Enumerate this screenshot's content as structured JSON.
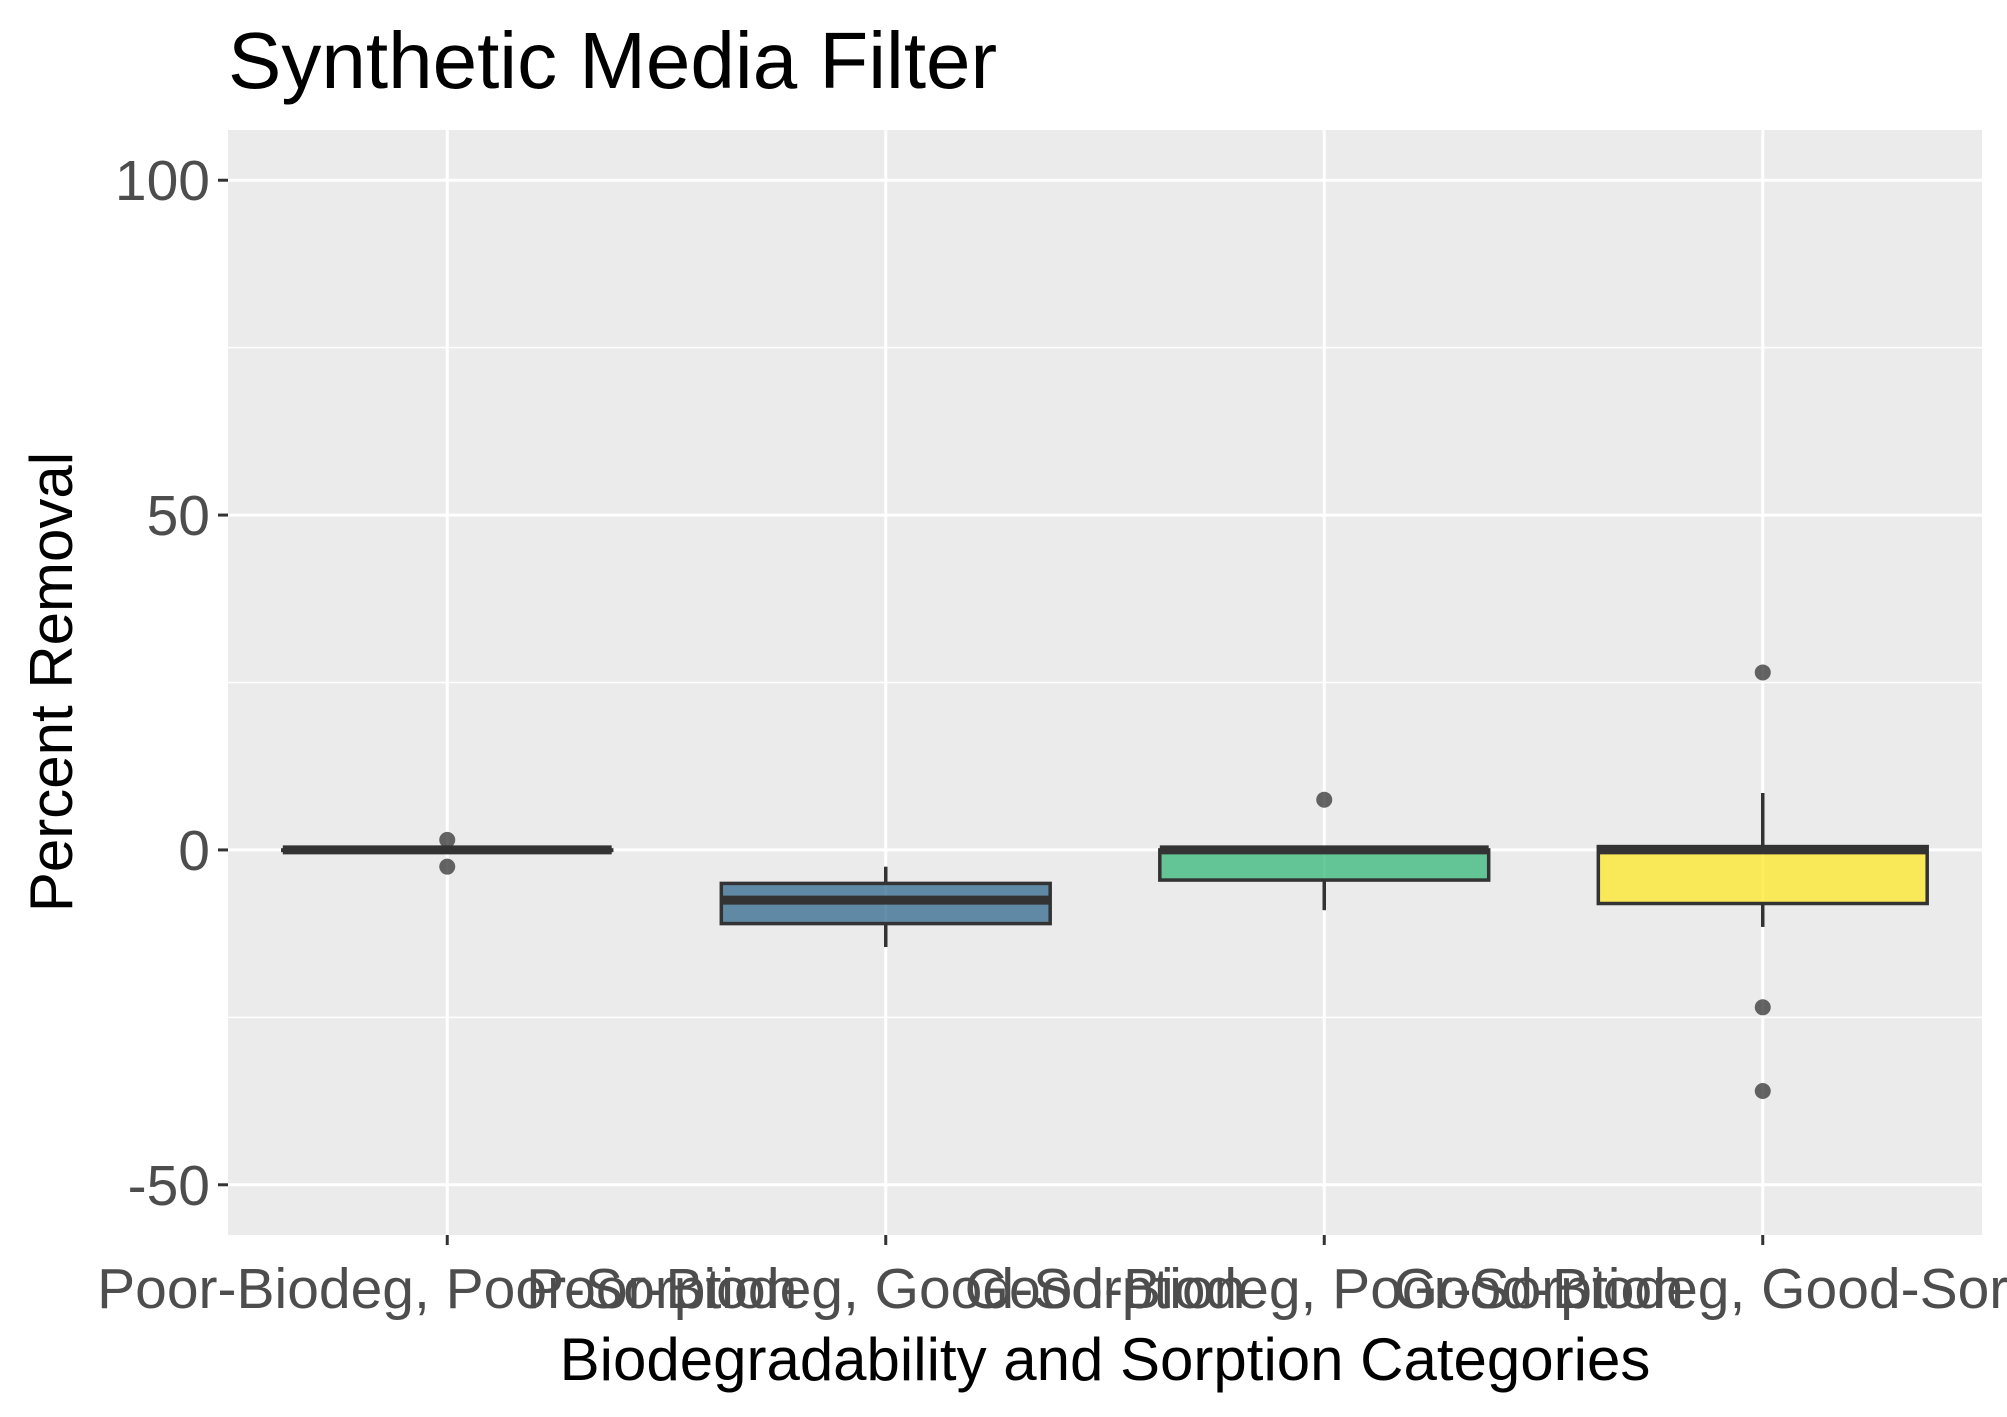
{
  "chart_data": {
    "type": "box",
    "title": "Synthetic Media Filter",
    "xlabel": "Biodegradability and Sorption Categories",
    "ylabel": "Percent Removal",
    "ylim": [
      -57.5,
      107.5
    ],
    "yticks": [
      -50,
      0,
      50,
      100
    ],
    "grid": true,
    "legend": "none",
    "categories": [
      "Poor-Biodeg, Poor-Sorption",
      "Poor-Biodeg, Good-Sorption",
      "Good-Biodeg, Poor-Sorption",
      "Good-Biodeg, Good-Sorption"
    ],
    "boxes": [
      {
        "category": "Poor-Biodeg, Poor-Sorption",
        "color": "#440154",
        "min": 0,
        "q1": 0,
        "median": 0,
        "q3": 0,
        "max": 0,
        "outliers": [
          1.5,
          -2.5
        ]
      },
      {
        "category": "Poor-Biodeg, Good-Sorption",
        "color": "#31688e",
        "min": -14.5,
        "q1": -11,
        "median": -7.5,
        "q3": -5,
        "max": -2.5,
        "outliers": []
      },
      {
        "category": "Good-Biodeg, Poor-Sorption",
        "color": "#35b779",
        "min": -9,
        "q1": -4.5,
        "median": 0,
        "q3": 0,
        "max": 0,
        "outliers": [
          7.5
        ]
      },
      {
        "category": "Good-Biodeg, Good-Sorption",
        "color": "#fde725",
        "min": -11.5,
        "q1": -8,
        "median": 0,
        "q3": 0.5,
        "max": 8.5,
        "outliers": [
          26.5,
          -23.5,
          -36
        ]
      }
    ]
  }
}
